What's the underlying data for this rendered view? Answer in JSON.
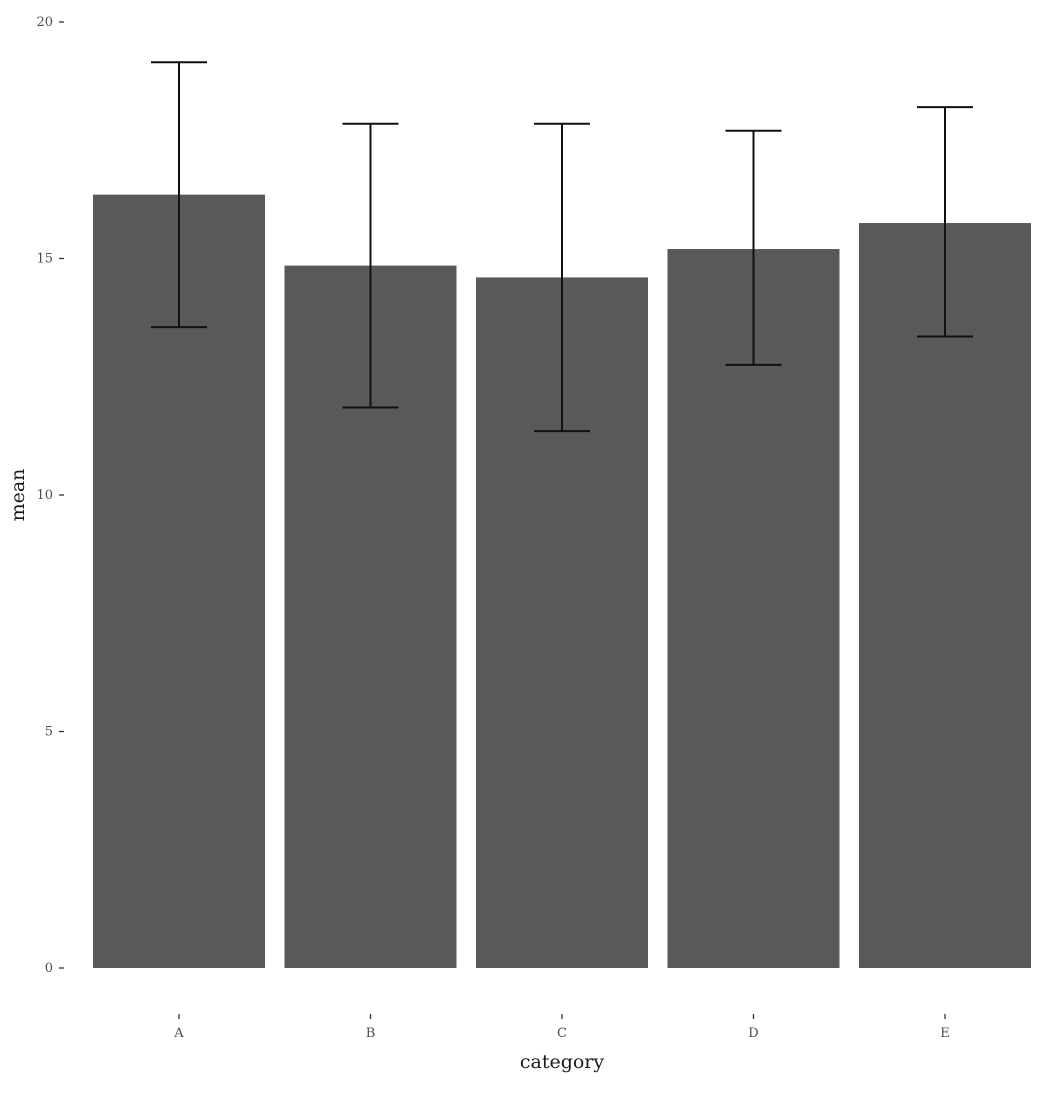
{
  "chart_data": {
    "type": "bar",
    "title": "",
    "xlabel": "category",
    "ylabel": "mean",
    "categories": [
      "A",
      "B",
      "C",
      "D",
      "E"
    ],
    "values": [
      16.35,
      14.85,
      14.6,
      15.2,
      15.75
    ],
    "error_bars": {
      "lower": [
        13.55,
        11.85,
        11.35,
        12.75,
        13.35
      ],
      "upper": [
        19.15,
        17.85,
        17.85,
        17.7,
        18.2
      ]
    },
    "ylim": [
      0,
      20
    ],
    "yticks": [
      0,
      5,
      10,
      15,
      20
    ],
    "grid": false,
    "legend": "none",
    "colors": {
      "bar": "#595959",
      "errorbar": "#111111",
      "background": "#ffffff"
    }
  }
}
